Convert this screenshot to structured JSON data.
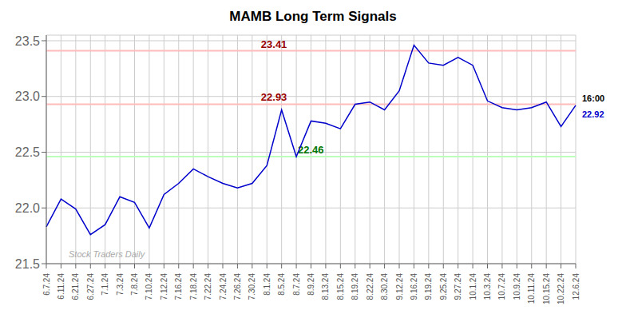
{
  "chart_data": {
    "type": "line",
    "title": "MAMB Long Term Signals",
    "categories": [
      "6.7.24",
      "6.11.24",
      "6.21.24",
      "6.27.24",
      "7.1.24",
      "7.3.24",
      "7.8.24",
      "7.10.24",
      "7.12.24",
      "7.16.24",
      "7.18.24",
      "7.22.24",
      "7.24.24",
      "7.26.24",
      "7.30.24",
      "8.1.24",
      "8.5.24",
      "8.7.24",
      "8.9.24",
      "8.13.24",
      "8.15.24",
      "8.19.24",
      "8.22.24",
      "8.30.24",
      "9.12.24",
      "9.16.24",
      "9.19.24",
      "9.25.24",
      "9.27.24",
      "10.1.24",
      "10.3.24",
      "10.7.24",
      "10.9.24",
      "10.11.24",
      "10.15.24",
      "10.22.24",
      "12.6.24"
    ],
    "values": [
      21.83,
      22.08,
      21.99,
      21.76,
      21.85,
      22.1,
      22.05,
      21.82,
      22.12,
      22.22,
      22.35,
      22.28,
      22.22,
      22.18,
      22.22,
      22.38,
      22.88,
      22.46,
      22.78,
      22.76,
      22.71,
      22.93,
      22.95,
      22.88,
      23.05,
      23.46,
      23.3,
      23.28,
      23.35,
      23.28,
      22.96,
      22.9,
      22.88,
      22.9,
      22.95,
      22.73,
      22.92
    ],
    "color": "#0000cc",
    "ylim": [
      21.5,
      23.55
    ],
    "yticks": [
      21.5,
      {
        "value": 22.0,
        "label": "22.0"
      },
      22.5,
      {
        "value": 23.0,
        "label": "23.0"
      },
      23.5
    ],
    "grid": true,
    "hlines": [
      {
        "value": 23.41,
        "color": "#ffbbbb",
        "label": "23.41",
        "label_color": "#990000"
      },
      {
        "value": 22.93,
        "color": "#ffbbbb",
        "label": "22.93",
        "label_color": "#990000"
      },
      {
        "value": 22.46,
        "color": "#bbffbb",
        "label": "22.46",
        "label_color": "#007700"
      }
    ],
    "end_annotation": {
      "label": "16:00",
      "text": "22.92",
      "color": "#0000cc"
    },
    "watermark": "Stock Traders Daily"
  }
}
